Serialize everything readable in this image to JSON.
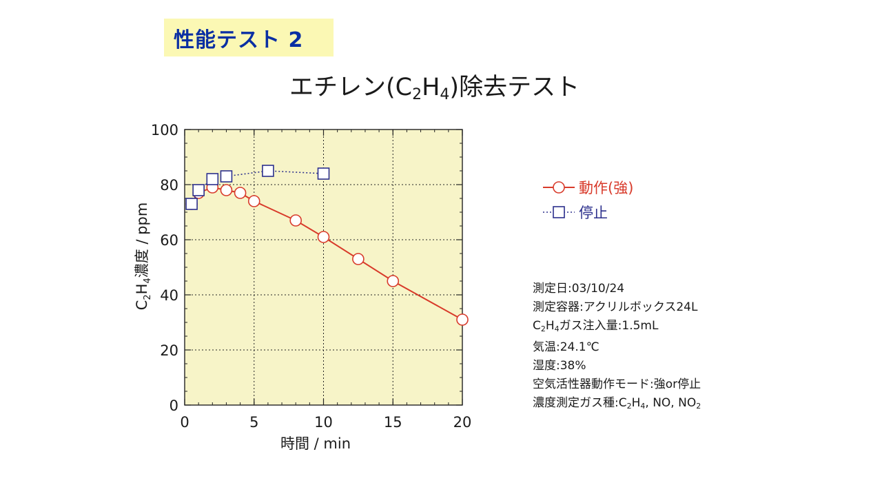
{
  "header": {
    "badge": "性能テスト 2",
    "title_parts": [
      "エチレン(C",
      "2",
      "H",
      "4",
      ")除去テスト"
    ]
  },
  "chart_data": {
    "type": "line",
    "xlabel": "時間 / min",
    "ylabel_parts": [
      "C",
      "2",
      "H",
      "4",
      "濃度 / ppm"
    ],
    "xlim": [
      0,
      20
    ],
    "ylim": [
      0,
      100
    ],
    "xticks": [
      0,
      5,
      10,
      15,
      20
    ],
    "yticks": [
      0,
      20,
      40,
      60,
      80,
      100
    ],
    "grid": true,
    "plot_background": "#f7f4c8",
    "legend_position": "right",
    "series": [
      {
        "name": "動作(強)",
        "color": "#d83a2a",
        "marker": "circle",
        "line_style": "solid",
        "x": [
          0.5,
          1,
          2,
          3,
          4,
          5,
          8,
          10,
          12.5,
          15,
          20
        ],
        "y": [
          73,
          77,
          79,
          78,
          77,
          74,
          67,
          61,
          53,
          45,
          31
        ]
      },
      {
        "name": "停止",
        "color": "#2b2f8c",
        "marker": "square",
        "line_style": "dotted",
        "x": [
          0.5,
          1,
          2,
          3,
          6,
          10
        ],
        "y": [
          73,
          78,
          82,
          83,
          85,
          84
        ]
      }
    ]
  },
  "info": {
    "date": "測定日:03/10/24",
    "container": "測定容器:アクリルボックス24L",
    "injection_parts": [
      "C",
      "2",
      "H",
      "4",
      "ガス注入量:1.5mL"
    ],
    "temperature": "気温:24.1℃",
    "humidity": "湿度:38%",
    "mode": "空気活性器動作モード:強or停止",
    "gas_parts": [
      "濃度測定ガス種:C",
      "2",
      "H",
      "4",
      ", NO, NO",
      "2"
    ]
  }
}
